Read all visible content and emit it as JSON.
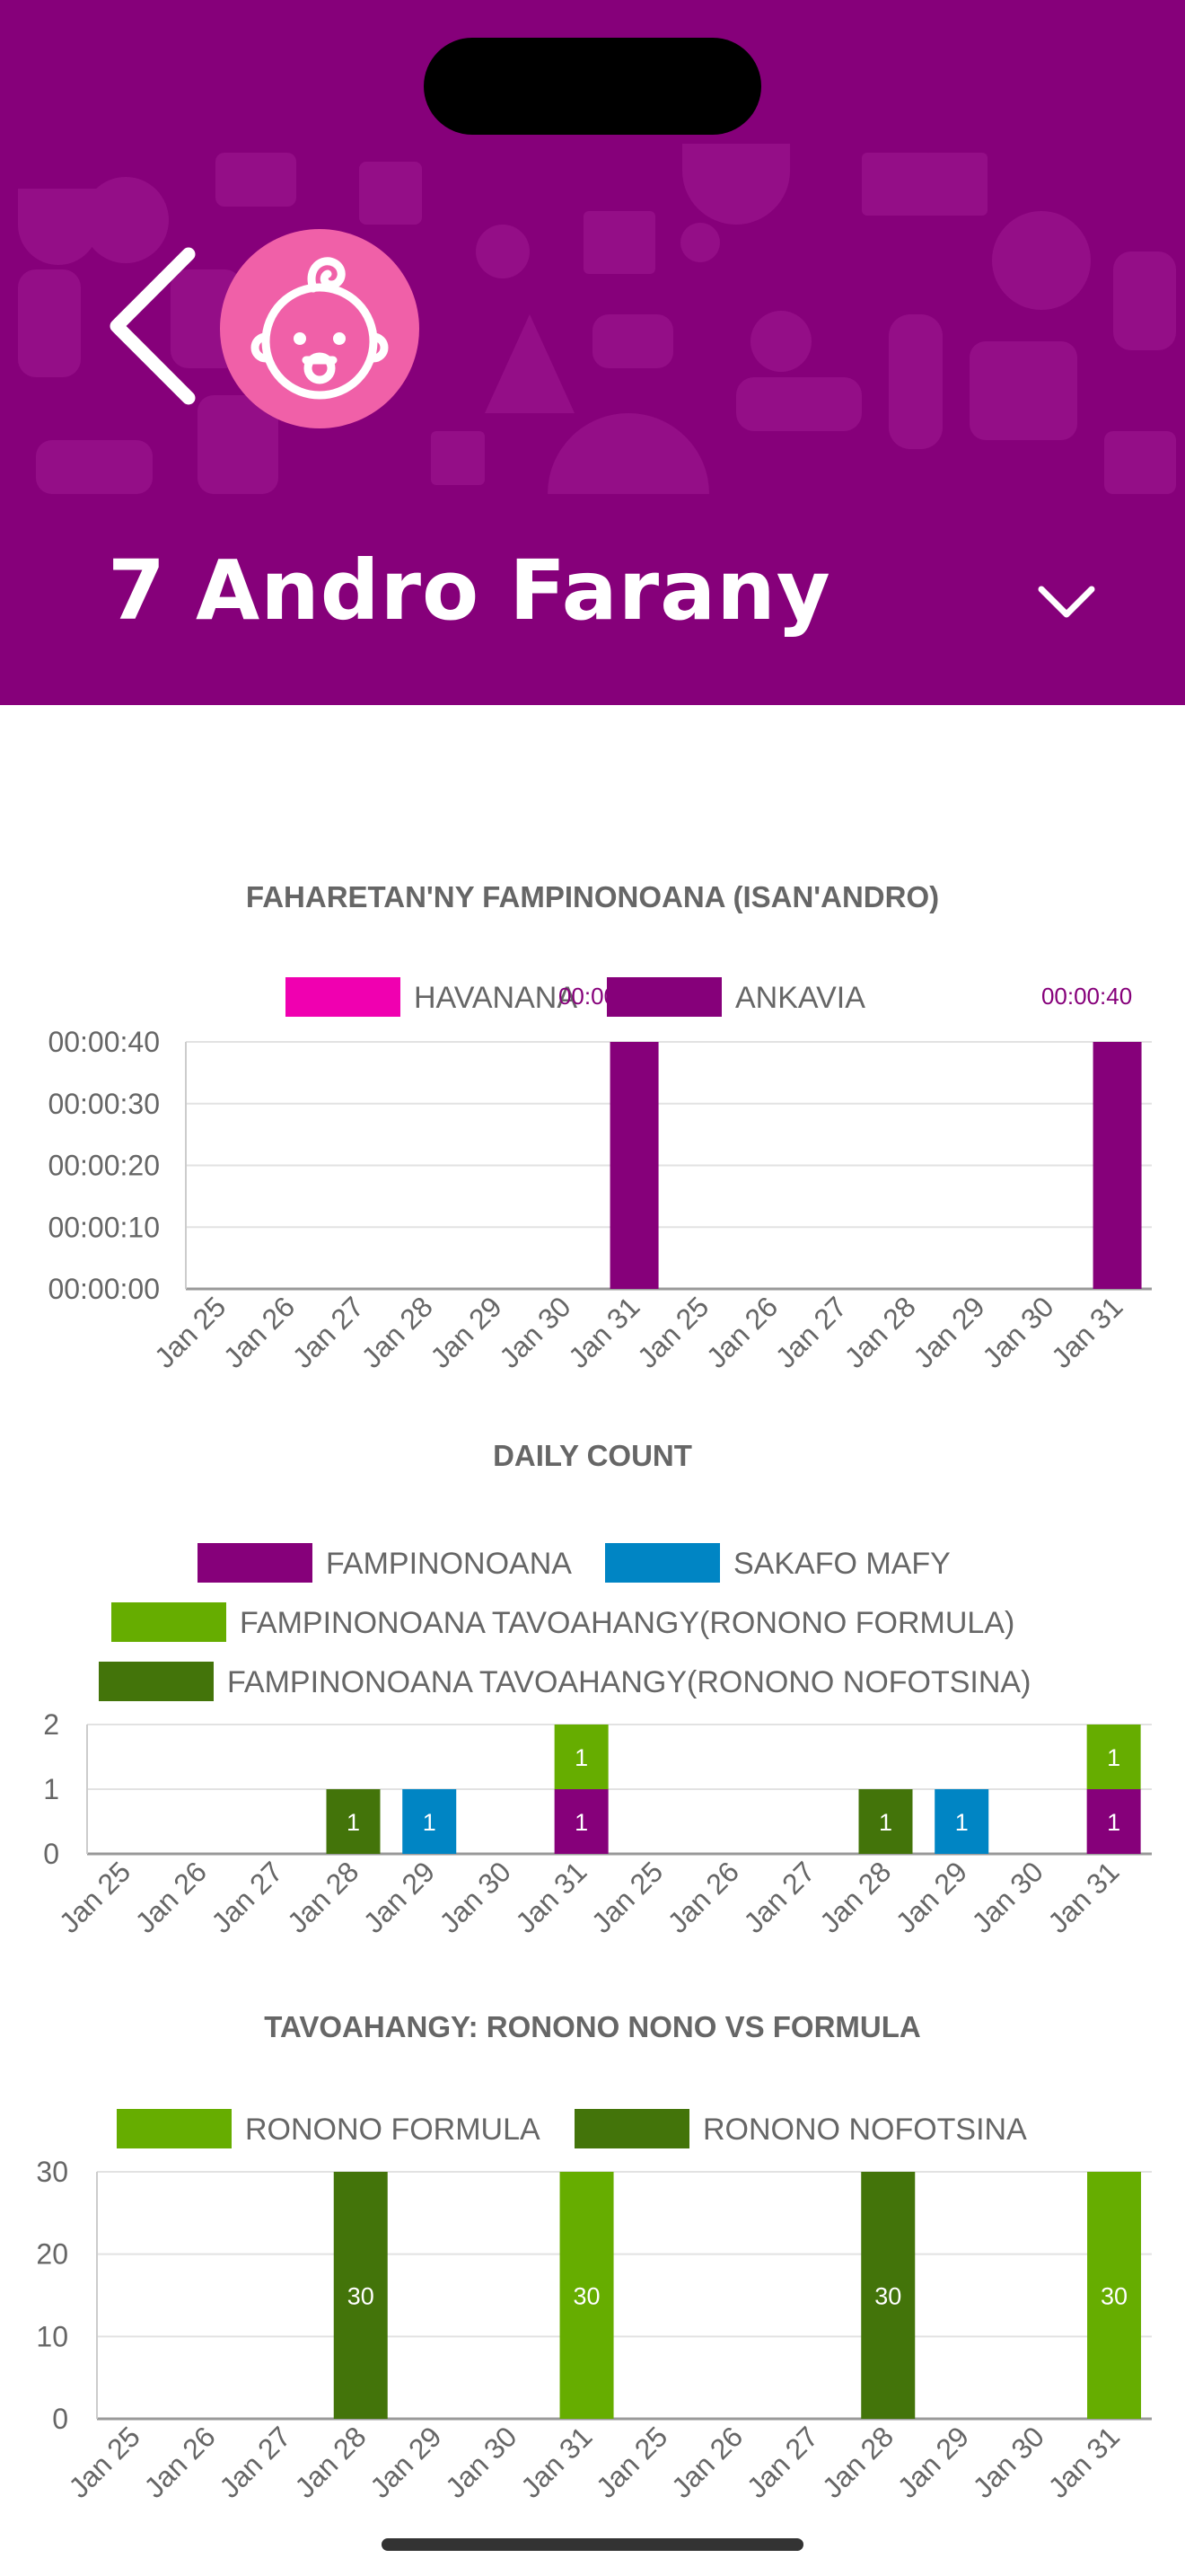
{
  "header": {
    "title": "7 Andro Farany",
    "back_icon": "back-chevron-icon",
    "avatar_icon": "baby-face-icon",
    "dropdown_icon": "chevron-down-icon",
    "background_color": "#86007a",
    "avatar_color": "#f060a8"
  },
  "charts": {
    "feeding_duration": {
      "title": "FAHARETAN'NY FAMPINONOANA (ISAN'ANDRO)",
      "legend": [
        {
          "label": "HAVANANA",
          "color": "#f000b0"
        },
        {
          "label": "ANKAVIA",
          "color": "#86007a"
        }
      ]
    },
    "daily_count": {
      "title": "DAILY COUNT",
      "legend": [
        {
          "label": "FAMPINONOANA",
          "color": "#86007a"
        },
        {
          "label": "SAKAFO MAFY",
          "color": "#0085c4"
        },
        {
          "label": "FAMPINONOANA TAVOAHANGY(RONONO FORMULA)",
          "color": "#66ad00"
        },
        {
          "label": "FAMPINONOANA TAVOAHANGY(RONONO NOFOTSINA)",
          "color": "#43740a"
        }
      ]
    },
    "bottle": {
      "title": "TAVOAHANGY: RONONO NONO VS FORMULA",
      "legend": [
        {
          "label": "RONONO FORMULA",
          "color": "#66ad00"
        },
        {
          "label": "RONONO NOFOTSINA",
          "color": "#43740a"
        }
      ]
    }
  },
  "chart_data": [
    {
      "type": "bar",
      "title": "FAHARETAN'NY FAMPINONOANA (ISAN'ANDRO)",
      "categories": [
        "Jan 25",
        "Jan 26",
        "Jan 27",
        "Jan 28",
        "Jan 29",
        "Jan 30",
        "Jan 31",
        "Jan 25",
        "Jan 26",
        "Jan 27",
        "Jan 28",
        "Jan 29",
        "Jan 30",
        "Jan 31"
      ],
      "y_ticks": [
        "00:00:00",
        "00:00:10",
        "00:00:20",
        "00:00:30",
        "00:00:40"
      ],
      "ylim": [
        0,
        40
      ],
      "series": [
        {
          "name": "HAVANANA",
          "color": "#f000b0",
          "values": [
            0,
            0,
            0,
            0,
            0,
            0,
            0,
            0,
            0,
            0,
            0,
            0,
            0,
            0
          ]
        },
        {
          "name": "ANKAVIA",
          "color": "#86007a",
          "values": [
            0,
            0,
            0,
            0,
            0,
            0,
            40,
            0,
            0,
            0,
            0,
            0,
            0,
            40
          ]
        }
      ],
      "data_labels": [
        {
          "category_index": 6,
          "text": "00:00:40"
        },
        {
          "category_index": 13,
          "text": "00:00:40"
        }
      ],
      "grid": true,
      "legend_position": "top"
    },
    {
      "type": "bar",
      "title": "DAILY COUNT",
      "stacked": true,
      "categories": [
        "Jan 25",
        "Jan 26",
        "Jan 27",
        "Jan 28",
        "Jan 29",
        "Jan 30",
        "Jan 31",
        "Jan 25",
        "Jan 26",
        "Jan 27",
        "Jan 28",
        "Jan 29",
        "Jan 30",
        "Jan 31"
      ],
      "y_ticks": [
        "0",
        "1",
        "2"
      ],
      "ylim": [
        0,
        2
      ],
      "series": [
        {
          "name": "FAMPINONOANA",
          "color": "#86007a",
          "values": [
            0,
            0,
            0,
            0,
            0,
            0,
            1,
            0,
            0,
            0,
            0,
            0,
            0,
            1
          ]
        },
        {
          "name": "SAKAFO MAFY",
          "color": "#0085c4",
          "values": [
            0,
            0,
            0,
            0,
            1,
            0,
            0,
            0,
            0,
            0,
            0,
            1,
            0,
            0
          ]
        },
        {
          "name": "FAMPINONOANA TAVOAHANGY(RONONO FORMULA)",
          "color": "#66ad00",
          "values": [
            0,
            0,
            0,
            0,
            0,
            0,
            1,
            0,
            0,
            0,
            0,
            0,
            0,
            1
          ]
        },
        {
          "name": "FAMPINONOANA TAVOAHANGY(RONONO NOFOTSINA)",
          "color": "#43740a",
          "values": [
            0,
            0,
            0,
            1,
            0,
            0,
            0,
            0,
            0,
            0,
            1,
            0,
            0,
            0
          ]
        }
      ],
      "grid": true,
      "legend_position": "top"
    },
    {
      "type": "bar",
      "title": "TAVOAHANGY: RONONO NONO VS FORMULA",
      "categories": [
        "Jan 25",
        "Jan 26",
        "Jan 27",
        "Jan 28",
        "Jan 29",
        "Jan 30",
        "Jan 31",
        "Jan 25",
        "Jan 26",
        "Jan 27",
        "Jan 28",
        "Jan 29",
        "Jan 30",
        "Jan 31"
      ],
      "y_ticks": [
        "0",
        "10",
        "20",
        "30"
      ],
      "ylim": [
        0,
        30
      ],
      "series": [
        {
          "name": "RONONO FORMULA",
          "color": "#66ad00",
          "values": [
            0,
            0,
            0,
            0,
            0,
            0,
            30,
            0,
            0,
            0,
            0,
            0,
            0,
            30
          ]
        },
        {
          "name": "RONONO NOFOTSINA",
          "color": "#43740a",
          "values": [
            0,
            0,
            0,
            30,
            0,
            0,
            0,
            0,
            0,
            0,
            30,
            0,
            0,
            0
          ]
        }
      ],
      "grid": true,
      "legend_position": "top"
    }
  ]
}
